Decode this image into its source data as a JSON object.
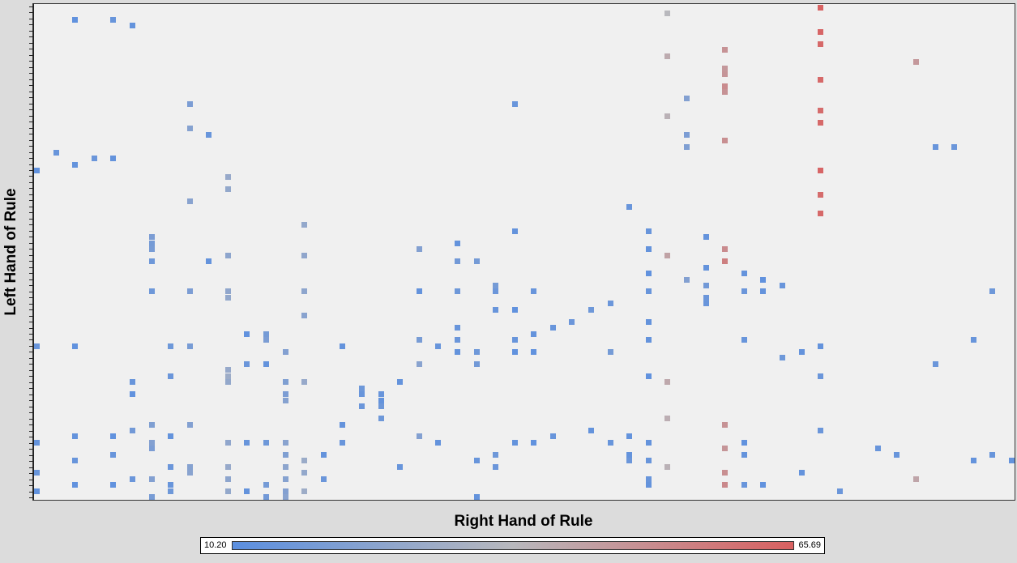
{
  "colors": {
    "low": "#5b8fe0",
    "mid": "#b8b8bd",
    "high": "#d96060",
    "plot_background": "#f0f0f0",
    "window_background": "#dcdcdc"
  },
  "chart_data": {
    "type": "heatmap",
    "xlabel": "Right Hand of Rule",
    "ylabel": "Left Hand of Rule",
    "x_tick_labels": [],
    "y_tick_labels": [],
    "y_tick_count": 82,
    "n_columns": 52,
    "n_rows": 82,
    "color_scale": {
      "min": 10.2,
      "max": 65.69,
      "min_label": "10.20",
      "max_label": "65.69"
    },
    "grid": false,
    "legend_position": "bottom",
    "cells": [
      [
        0,
        27,
        12
      ],
      [
        0,
        56,
        14
      ],
      [
        0,
        72,
        13
      ],
      [
        0,
        77,
        14
      ],
      [
        0,
        80,
        12
      ],
      [
        2,
        2,
        12
      ],
      [
        2,
        26,
        13
      ],
      [
        2,
        56,
        12
      ],
      [
        2,
        71,
        13
      ],
      [
        2,
        75,
        14
      ],
      [
        2,
        79,
        12
      ],
      [
        4,
        2,
        14
      ],
      [
        4,
        25,
        13
      ],
      [
        4,
        74,
        14
      ],
      [
        4,
        79,
        12
      ],
      [
        6,
        39,
        18
      ],
      [
        6,
        40,
        19
      ],
      [
        6,
        38,
        20
      ],
      [
        6,
        42,
        16
      ],
      [
        6,
        47,
        16
      ],
      [
        6,
        69,
        21
      ],
      [
        6,
        73,
        20
      ],
      [
        6,
        78,
        22
      ],
      [
        6,
        81,
        18
      ],
      [
        4,
        71,
        12
      ],
      [
        6,
        72,
        22
      ],
      [
        6,
        81,
        19
      ],
      [
        8,
        16,
        20
      ],
      [
        8,
        20,
        23
      ],
      [
        8,
        32,
        24
      ],
      [
        8,
        47,
        20
      ],
      [
        8,
        56,
        19
      ],
      [
        8,
        69,
        22
      ],
      [
        8,
        76,
        23
      ],
      [
        8,
        77,
        24
      ],
      [
        10,
        28,
        28
      ],
      [
        10,
        30,
        27
      ],
      [
        10,
        41,
        25
      ],
      [
        10,
        47,
        26
      ],
      [
        10,
        48,
        27
      ],
      [
        10,
        60,
        28
      ],
      [
        10,
        61,
        30
      ],
      [
        10,
        62,
        27
      ],
      [
        10,
        72,
        26
      ],
      [
        10,
        76,
        28
      ],
      [
        10,
        78,
        25
      ],
      [
        10,
        80,
        27
      ],
      [
        12,
        54,
        18
      ],
      [
        12,
        55,
        20
      ],
      [
        12,
        59,
        13
      ],
      [
        12,
        72,
        16
      ],
      [
        12,
        81,
        17
      ],
      [
        12,
        79,
        18
      ],
      [
        14,
        36,
        27
      ],
      [
        14,
        41,
        26
      ],
      [
        14,
        47,
        25
      ],
      [
        14,
        51,
        24
      ],
      [
        14,
        62,
        28
      ],
      [
        14,
        75,
        29
      ],
      [
        14,
        77,
        27
      ],
      [
        14,
        80,
        30
      ],
      [
        11,
        72,
        14
      ],
      [
        11,
        54,
        12
      ],
      [
        11,
        59,
        15
      ],
      [
        11,
        80,
        13
      ],
      [
        7,
        56,
        16
      ],
      [
        7,
        61,
        15
      ],
      [
        7,
        79,
        14
      ],
      [
        7,
        71,
        13
      ],
      [
        7,
        76,
        15
      ],
      [
        7,
        80,
        16
      ],
      [
        13,
        57,
        22
      ],
      [
        13,
        62,
        21
      ],
      [
        13,
        64,
        20
      ],
      [
        13,
        65,
        23
      ],
      [
        13,
        72,
        24
      ],
      [
        13,
        74,
        21
      ],
      [
        13,
        76,
        25
      ],
      [
        13,
        78,
        23
      ],
      [
        13,
        80,
        22
      ],
      [
        13,
        81,
        24
      ],
      [
        9,
        21,
        14
      ],
      [
        9,
        42,
        13
      ],
      [
        1,
        24,
        14
      ],
      [
        3,
        25,
        15
      ],
      [
        5,
        3,
        13
      ],
      [
        5,
        70,
        17
      ],
      [
        5,
        78,
        15
      ],
      [
        5,
        64,
        12
      ],
      [
        5,
        62,
        14
      ],
      [
        15,
        74,
        13
      ],
      [
        15,
        78,
        15
      ],
      [
        16,
        56,
        13
      ],
      [
        16,
        72,
        14
      ],
      [
        16,
        69,
        13
      ],
      [
        17,
        64,
        14
      ],
      [
        17,
        66,
        15
      ],
      [
        17,
        63,
        16
      ],
      [
        18,
        65,
        13
      ],
      [
        18,
        64,
        14
      ],
      [
        18,
        66,
        16
      ],
      [
        18,
        68,
        16
      ],
      [
        19,
        62,
        13
      ],
      [
        19,
        76,
        14
      ],
      [
        20,
        47,
        13
      ],
      [
        20,
        55,
        19
      ],
      [
        20,
        40,
        22
      ],
      [
        20,
        59,
        24
      ],
      [
        20,
        71,
        22
      ],
      [
        21,
        72,
        13
      ],
      [
        21,
        56,
        14
      ],
      [
        22,
        39,
        13
      ],
      [
        22,
        42,
        17
      ],
      [
        22,
        47,
        16
      ],
      [
        22,
        57,
        13
      ],
      [
        22,
        53,
        14
      ],
      [
        22,
        55,
        15
      ],
      [
        23,
        42,
        18
      ],
      [
        23,
        57,
        16
      ],
      [
        23,
        59,
        17
      ],
      [
        23,
        75,
        14
      ],
      [
        23,
        81,
        13
      ],
      [
        24,
        46,
        18
      ],
      [
        24,
        47,
        15
      ],
      [
        24,
        50,
        14
      ],
      [
        24,
        74,
        16
      ],
      [
        24,
        76,
        15
      ],
      [
        25,
        16,
        14
      ],
      [
        25,
        37,
        13
      ],
      [
        25,
        50,
        12
      ],
      [
        25,
        55,
        14
      ],
      [
        25,
        57,
        12
      ],
      [
        25,
        72,
        13
      ],
      [
        26,
        47,
        14
      ],
      [
        26,
        54,
        13
      ],
      [
        26,
        57,
        12
      ],
      [
        26,
        72,
        12
      ],
      [
        27,
        53,
        14
      ],
      [
        27,
        71,
        14
      ],
      [
        28,
        52,
        15
      ],
      [
        29,
        50,
        16
      ],
      [
        29,
        70,
        13
      ],
      [
        30,
        49,
        15
      ],
      [
        30,
        57,
        18
      ],
      [
        30,
        72,
        14
      ],
      [
        31,
        33,
        14
      ],
      [
        31,
        71,
        13
      ],
      [
        31,
        74,
        13
      ],
      [
        31,
        75,
        15
      ],
      [
        32,
        72,
        13
      ],
      [
        32,
        75,
        14
      ],
      [
        32,
        78,
        14
      ],
      [
        32,
        55,
        13
      ],
      [
        32,
        47,
        14
      ],
      [
        32,
        52,
        13
      ],
      [
        32,
        40,
        13
      ],
      [
        32,
        61,
        12
      ],
      [
        32,
        79,
        13
      ],
      [
        32,
        44,
        12
      ],
      [
        32,
        37,
        14
      ],
      [
        33,
        1,
        38
      ],
      [
        33,
        8,
        42
      ],
      [
        33,
        18,
        40
      ],
      [
        33,
        41,
        45
      ],
      [
        33,
        62,
        43
      ],
      [
        33,
        68,
        41
      ],
      [
        33,
        76,
        40
      ],
      [
        34,
        15,
        22
      ],
      [
        34,
        21,
        20
      ],
      [
        34,
        23,
        21
      ],
      [
        34,
        45,
        22
      ],
      [
        35,
        38,
        13
      ],
      [
        35,
        43,
        13
      ],
      [
        35,
        46,
        17
      ],
      [
        35,
        48,
        15
      ],
      [
        35,
        49,
        14
      ],
      [
        36,
        7,
        50
      ],
      [
        36,
        10,
        48
      ],
      [
        36,
        11,
        49
      ],
      [
        36,
        13,
        52
      ],
      [
        36,
        14,
        50
      ],
      [
        36,
        22,
        51
      ],
      [
        36,
        40,
        52
      ],
      [
        36,
        69,
        50
      ],
      [
        36,
        73,
        49
      ],
      [
        36,
        77,
        51
      ],
      [
        36,
        42,
        56
      ],
      [
        36,
        79,
        53
      ],
      [
        37,
        44,
        15
      ],
      [
        37,
        55,
        14
      ],
      [
        37,
        44,
        13
      ],
      [
        37,
        72,
        12
      ],
      [
        37,
        74,
        13
      ],
      [
        37,
        79,
        14
      ],
      [
        37,
        47,
        15
      ],
      [
        37,
        55,
        14
      ],
      [
        38,
        45,
        12
      ],
      [
        38,
        47,
        13
      ],
      [
        38,
        79,
        12
      ],
      [
        39,
        46,
        14
      ],
      [
        39,
        58,
        16
      ],
      [
        40,
        57,
        13
      ],
      [
        40,
        77,
        13
      ],
      [
        41,
        70,
        15
      ],
      [
        41,
        61,
        15
      ],
      [
        41,
        56,
        13
      ],
      [
        42,
        80,
        15
      ],
      [
        41,
        0,
        65
      ],
      [
        41,
        4,
        64
      ],
      [
        41,
        6,
        63
      ],
      [
        41,
        12,
        63
      ],
      [
        41,
        17,
        62
      ],
      [
        41,
        19,
        63
      ],
      [
        41,
        27,
        64
      ],
      [
        41,
        31,
        62
      ],
      [
        41,
        34,
        63
      ],
      [
        46,
        9,
        48
      ],
      [
        46,
        78,
        44
      ],
      [
        47,
        23,
        14
      ],
      [
        47,
        59,
        15
      ],
      [
        48,
        23,
        15
      ],
      [
        49,
        55,
        14
      ],
      [
        49,
        75,
        13
      ],
      [
        50,
        74,
        14
      ],
      [
        50,
        47,
        16
      ],
      [
        51,
        75,
        13
      ],
      [
        44,
        73,
        14
      ],
      [
        45,
        74,
        14
      ]
    ]
  }
}
